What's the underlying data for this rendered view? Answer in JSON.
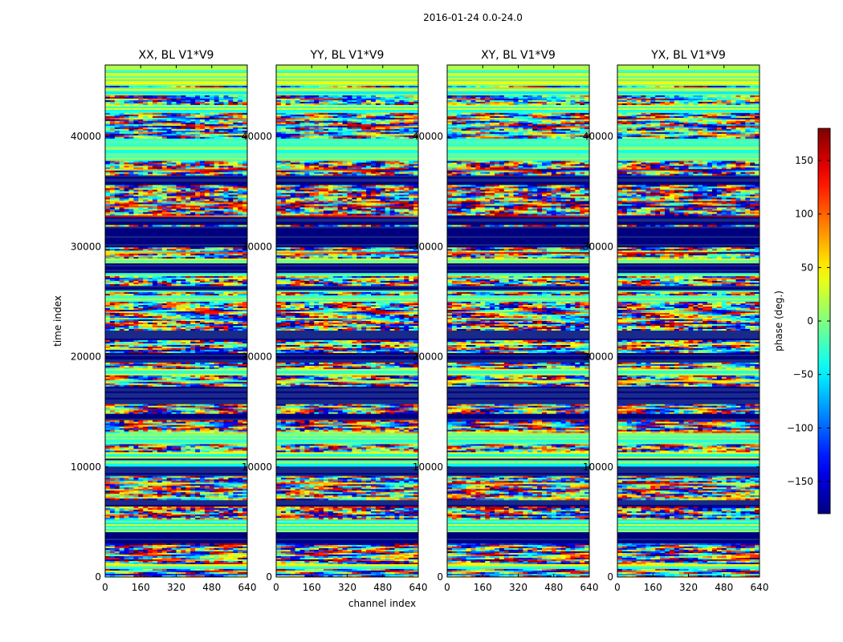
{
  "chart_data": {
    "type": "heatmap",
    "title": "2016-01-24 0.0-24.0",
    "xlabel": "channel index",
    "ylabel": "time index",
    "xlim": [
      0,
      640
    ],
    "ylim": [
      0,
      46500
    ],
    "x_ticks": [
      0,
      160,
      320,
      480,
      640
    ],
    "y_ticks": [
      0,
      10000,
      20000,
      30000,
      40000
    ],
    "panels": [
      {
        "title": "XX, BL V1*V9"
      },
      {
        "title": "YY, BL V1*V9"
      },
      {
        "title": "XY, BL V1*V9"
      },
      {
        "title": "YX, BL V1*V9"
      }
    ],
    "colorbar": {
      "label": "phase (deg.)",
      "range": [
        -180,
        180
      ],
      "ticks": [
        -150,
        -100,
        -50,
        0,
        50,
        100,
        150
      ],
      "tick_labels": [
        "−150",
        "−100",
        "−50",
        "0",
        "50",
        "100",
        "150"
      ],
      "colormap": "jet"
    }
  }
}
